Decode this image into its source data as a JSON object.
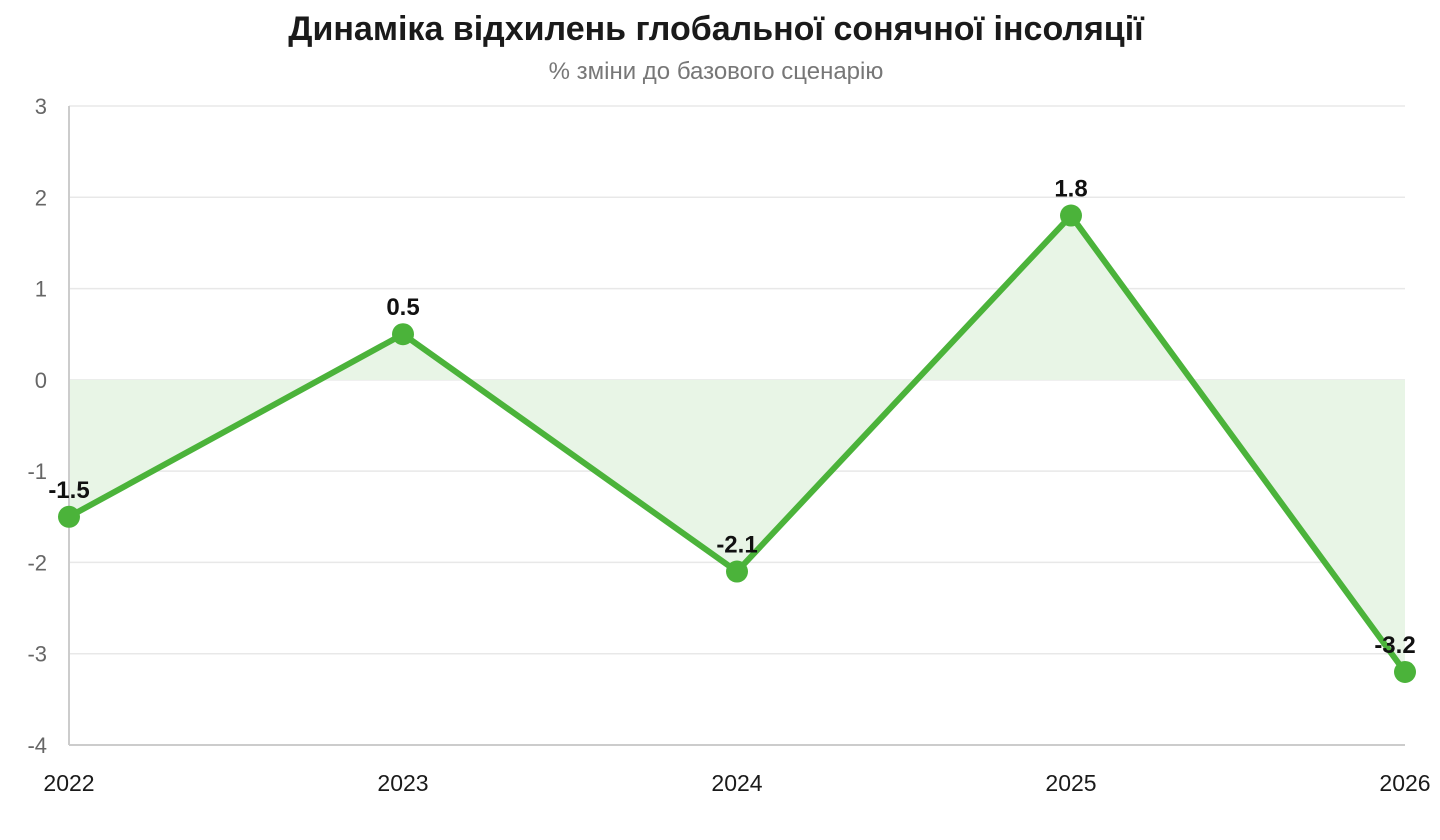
{
  "chart_data": {
    "type": "line",
    "title": "Динаміка відхилень глобальної сонячної інсоляції",
    "subtitle": "% зміни до базового сценарію",
    "xlabel": "",
    "ylabel": "",
    "categories": [
      "2022",
      "2023",
      "2024",
      "2025",
      "2026"
    ],
    "series": [
      {
        "values": [
          -1.5,
          0.5,
          -2.1,
          1.8,
          -3.2
        ]
      }
    ],
    "data_labels": [
      "-1.5",
      "0.5",
      "-2.1",
      "1.8",
      "-3.2"
    ],
    "ylim": [
      -4,
      3
    ],
    "yticks": [
      "3",
      "2",
      "1",
      "0",
      "-1",
      "-2",
      "-3",
      "-4"
    ],
    "ytick_values": [
      3,
      2,
      1,
      0,
      -1,
      -2,
      -3,
      -4
    ],
    "grid": true,
    "area_fill_to_zero": true,
    "colors": {
      "line": "#4bb33a",
      "area": "#e8f5e6",
      "grid": "#e8e8e8",
      "axis": "#cccccc"
    }
  }
}
